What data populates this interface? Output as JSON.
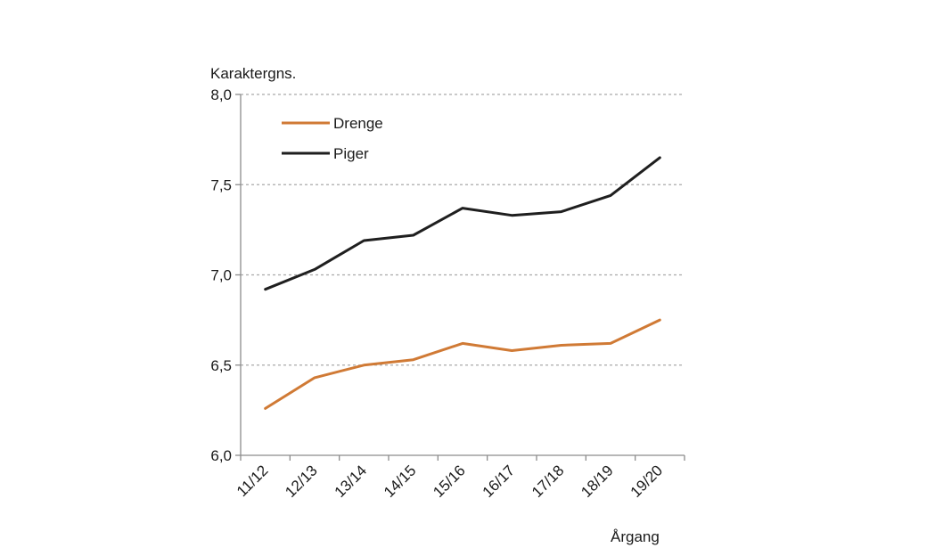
{
  "chart_data": {
    "type": "line",
    "ylabel": "Karaktergns.",
    "xlabel": "Årgang",
    "ylim": [
      6.0,
      8.0
    ],
    "yticks": [
      6.0,
      6.5,
      7.0,
      7.5,
      8.0
    ],
    "ytick_labels": [
      "6,0",
      "6,5",
      "7,0",
      "7,5",
      "8,0"
    ],
    "categories": [
      "11/12",
      "12/13",
      "13/14",
      "14/15",
      "15/16",
      "16/17",
      "17/18",
      "18/19",
      "19/20"
    ],
    "grid": true,
    "legend_position": "top-left",
    "series": [
      {
        "name": "Drenge",
        "color": "#d07a35",
        "values": [
          6.26,
          6.43,
          6.5,
          6.53,
          6.62,
          6.58,
          6.61,
          6.62,
          6.75
        ]
      },
      {
        "name": "Piger",
        "color": "#1f1f1f",
        "values": [
          6.92,
          7.03,
          7.19,
          7.22,
          7.37,
          7.33,
          7.35,
          7.44,
          7.65
        ]
      }
    ]
  }
}
